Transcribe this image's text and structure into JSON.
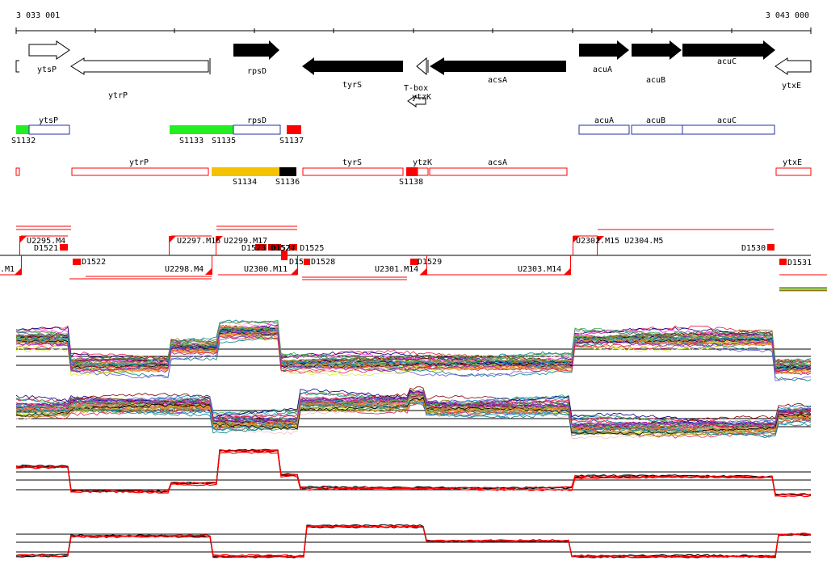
{
  "coords": {
    "start": "3 033 001",
    "end": "3 043 000"
  },
  "top_labels": {
    "ytsP": "ytsP",
    "ytrP": "ytrP",
    "rpsD": "rpsD",
    "tyrS": "tyrS",
    "tbox": "T-box",
    "ytzK": "ytzK",
    "acsA": "acsA",
    "acuA": "acuA",
    "acuB": "acuB",
    "acuC": "acuC",
    "ytxE": "ytxE"
  },
  "segments1": {
    "ytsP": "ytsP",
    "rpsD": "rpsD",
    "acuA": "acuA",
    "acuB": "acuB",
    "acuC": "acuC",
    "S1132": "S1132",
    "S1133": "S1133",
    "S1135": "S1135",
    "S1137": "S1137"
  },
  "segments2": {
    "ytrP": "ytrP",
    "tyrS": "tyrS",
    "ytzK": "ytzK",
    "acsA": "acsA",
    "ytxE": "ytxE",
    "S1134": "S1134",
    "S1136": "S1136",
    "S1138": "S1138"
  },
  "features": {
    "U2295": "U2295.M4",
    "D1521": "D1521",
    "U2297": "U2297.M16",
    "U2299": "U2299.M17",
    "overlap": "D1523 D1524 D1525",
    "D1527": "D1527",
    "U2302": "U2302.M15 U2304.M5",
    "D1530": "D1530",
    "M1": ".M1",
    "D1522": "D1522",
    "U2298": "U2298.M4",
    "U2300": "U2300.M11",
    "D15": "D15",
    "D1528": "D1528",
    "U2301": "U2301.M14",
    "D1529": "D1529",
    "U2303": "U2303.M14",
    "D1531": "D1531"
  },
  "colors": {
    "segment_green": "#22ee22",
    "segment_red": "#ff0000",
    "segment_gold": "#f5c200",
    "segment_blue": "#2233aa",
    "feature_red": "#ff0000",
    "profile_black": "#000000",
    "profile_red": "#ff0000"
  }
}
